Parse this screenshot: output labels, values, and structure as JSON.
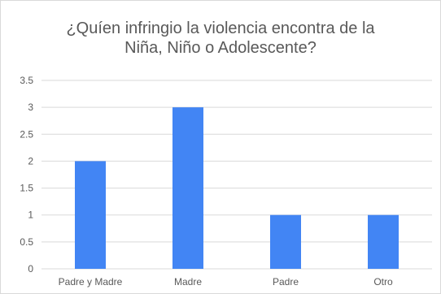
{
  "chart_data": {
    "type": "bar",
    "title_lines": [
      "¿Quíen infringio la violencia encontra de la",
      "Niña, Niño o Adolescente?"
    ],
    "categories": [
      "Padre y Madre",
      "Madre",
      "Padre",
      "Otro"
    ],
    "values": [
      2,
      3,
      1,
      1
    ],
    "ylim": [
      0,
      3.5
    ],
    "yticks": [
      "0",
      "0.5",
      "1",
      "1.5",
      "2",
      "2.5",
      "3",
      "3.5"
    ],
    "grid": true,
    "bar_color": "#4285f4",
    "grid_color": "#d9d9d9"
  }
}
